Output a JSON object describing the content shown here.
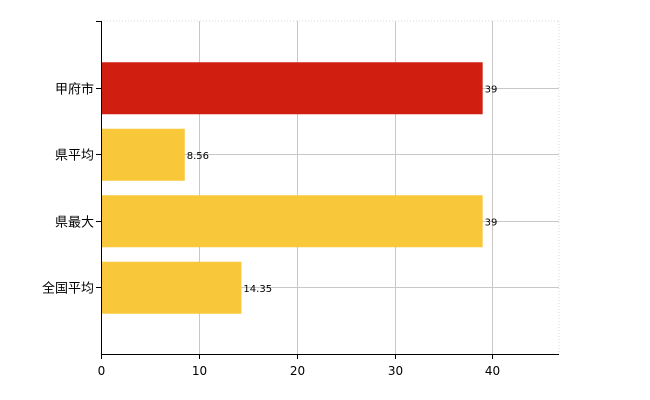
{
  "chart_data": {
    "type": "bar",
    "orientation": "horizontal",
    "categories": [
      "甲府市",
      "県平均",
      "県最大",
      "全国平均"
    ],
    "values": [
      39,
      8.56,
      39,
      14.35
    ],
    "value_labels": [
      "39",
      "8.56",
      "39",
      "14.35"
    ],
    "bar_colors": [
      "#d01f10",
      "#f8c83a",
      "#f8c83a",
      "#f8c83a"
    ],
    "x_ticks": [
      "0",
      "10",
      "20",
      "30",
      "40"
    ],
    "xlim": [
      0,
      46.8
    ],
    "grid": true,
    "title": "",
    "xlabel": "",
    "ylabel": ""
  }
}
